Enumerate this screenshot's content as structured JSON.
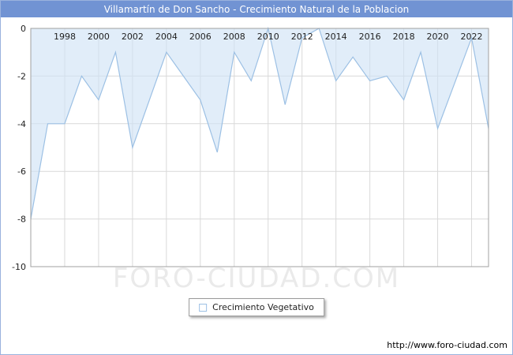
{
  "header": {
    "title": "Villamartín de Don Sancho - Crecimiento Natural de la Poblacion",
    "bar_color": "#7193d3"
  },
  "legend": {
    "label": "Crecimiento Vegetativo"
  },
  "footer": {
    "watermark": "FORO-CIUDAD.COM",
    "url": "http://www.foro-ciudad.com"
  },
  "chart_data": {
    "type": "area",
    "title": "Villamartín de Don Sancho - Crecimiento Natural de la Poblacion",
    "series_name": "Crecimiento Vegetativo",
    "x": [
      1996,
      1997,
      1998,
      1999,
      2000,
      2001,
      2002,
      2003,
      2004,
      2005,
      2006,
      2007,
      2008,
      2009,
      2010,
      2011,
      2012,
      2013,
      2014,
      2015,
      2016,
      2017,
      2018,
      2019,
      2020,
      2021,
      2022,
      2023
    ],
    "values": [
      -8,
      -4,
      -4,
      -2,
      -3,
      -1,
      -5,
      -3,
      -1,
      -2,
      -3,
      -5.2,
      -1,
      -2.2,
      0,
      -3.2,
      -0.4,
      0,
      -2.2,
      -1.2,
      -2.2,
      -2,
      -3,
      -1,
      -4.2,
      -2.3,
      -0.4,
      -4.2
    ],
    "xlim": [
      1996,
      2023
    ],
    "ylim": [
      -10,
      0
    ],
    "xticks": [
      1998,
      2000,
      2002,
      2004,
      2006,
      2008,
      2010,
      2012,
      2014,
      2016,
      2018,
      2020,
      2022
    ],
    "yticks": [
      0,
      -2,
      -4,
      -6,
      -8,
      -10
    ],
    "grid": true,
    "legend_position": "bottom-center",
    "line_color": "#9cc0e4",
    "fill_color": "#cfe2f6",
    "fill_opacity": 0.62,
    "grid_color": "#d9d9d9",
    "border_color": "#a0a0a0",
    "tick_label_color": "#222222"
  }
}
